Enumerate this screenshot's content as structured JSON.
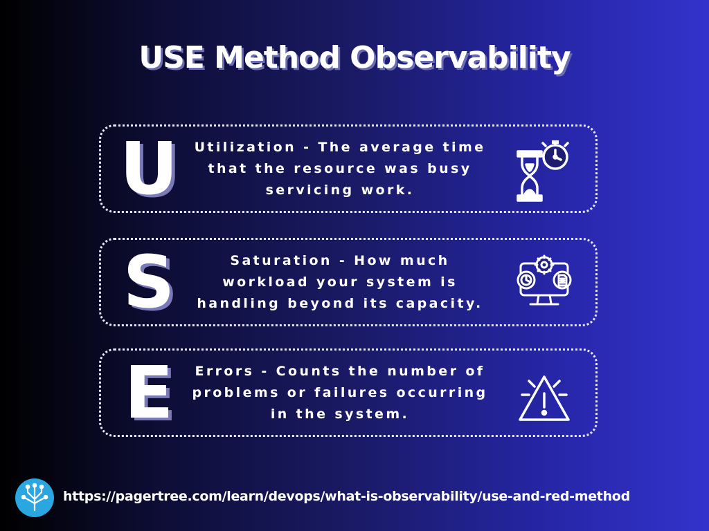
{
  "title": "USE Method Observability",
  "items": [
    {
      "letter": "U",
      "description": "Utilization - The average time that the resource was busy servicing work.",
      "icon": "hourglass-stopwatch-icon"
    },
    {
      "letter": "S",
      "description": "Saturation - How much workload your system is handling beyond its capacity.",
      "icon": "monitor-gears-icon"
    },
    {
      "letter": "E",
      "description": "Errors - Counts the number of problems or failures occurring in the system.",
      "icon": "warning-triangle-icon"
    }
  ],
  "footer": {
    "logo_icon": "pagertree-logo-icon",
    "url": "https://pagertree.com/learn/devops/what-is-observability/use-and-red-method"
  },
  "colors": {
    "background_left": "#000000",
    "background_right": "#3333cc",
    "text": "#ffffff",
    "logo_background": "#2aa7e0"
  }
}
